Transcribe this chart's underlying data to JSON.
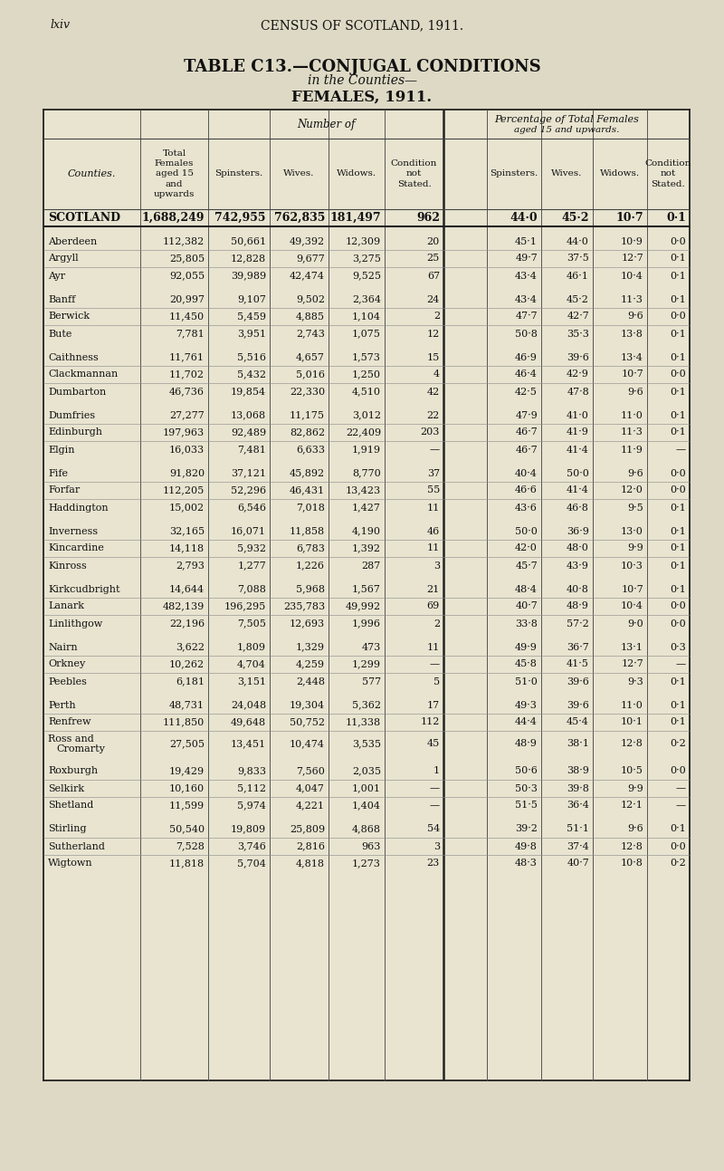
{
  "page_header_left": "lxiv",
  "page_header_center": "CENSUS OF SCOTLAND, 1911.",
  "title_line1": "TABLE C13.—CONJUGAL CONDITIONS",
  "title_line1_small": " in the Counties—",
  "title_line2": "FEMALES, 1911.",
  "rows": [
    [
      "SCOTLAND",
      "1,688,249",
      "742,955",
      "762,835",
      "181,497",
      "962",
      "44·0",
      "45·2",
      "10·7",
      "0·1",
      true
    ],
    [
      "Aberdeen",
      "112,382",
      "50,661",
      "49,392",
      "12,309",
      "20",
      "45·1",
      "44·0",
      "10·9",
      "0·0",
      false
    ],
    [
      "Argyll",
      "25,805",
      "12,828",
      "9,677",
      "3,275",
      "25",
      "49·7",
      "37·5",
      "12·7",
      "0·1",
      false
    ],
    [
      "Ayr",
      "92,055",
      "39,989",
      "42,474",
      "9,525",
      "67",
      "43·4",
      "46·1",
      "10·4",
      "0·1",
      false
    ],
    [
      "Banff",
      "20,997",
      "9,107",
      "9,502",
      "2,364",
      "24",
      "43·4",
      "45·2",
      "11·3",
      "0·1",
      false
    ],
    [
      "Berwick",
      "11,450",
      "5,459",
      "4,885",
      "1,104",
      "2",
      "47·7",
      "42·7",
      "9·6",
      "0·0",
      false
    ],
    [
      "Bute",
      "7,781",
      "3,951",
      "2,743",
      "1,075",
      "12",
      "50·8",
      "35·3",
      "13·8",
      "0·1",
      false
    ],
    [
      "Caithness",
      "11,761",
      "5,516",
      "4,657",
      "1,573",
      "15",
      "46·9",
      "39·6",
      "13·4",
      "0·1",
      false
    ],
    [
      "Clackmannan",
      "11,702",
      "5,432",
      "5,016",
      "1,250",
      "4",
      "46·4",
      "42·9",
      "10·7",
      "0·0",
      false
    ],
    [
      "Dumbarton",
      "46,736",
      "19,854",
      "22,330",
      "4,510",
      "42",
      "42·5",
      "47·8",
      "9·6",
      "0·1",
      false
    ],
    [
      "Dumfries",
      "27,277",
      "13,068",
      "11,175",
      "3,012",
      "22",
      "47·9",
      "41·0",
      "11·0",
      "0·1",
      false
    ],
    [
      "Edinburgh",
      "197,963",
      "92,489",
      "82,862",
      "22,409",
      "203",
      "46·7",
      "41·9",
      "11·3",
      "0·1",
      false
    ],
    [
      "Elgin",
      "16,033",
      "7,481",
      "6,633",
      "1,919",
      "—",
      "46·7",
      "41·4",
      "11·9",
      "—",
      false
    ],
    [
      "Fife",
      "91,820",
      "37,121",
      "45,892",
      "8,770",
      "37",
      "40·4",
      "50·0",
      "9·6",
      "0·0",
      false
    ],
    [
      "Forfar",
      "112,205",
      "52,296",
      "46,431",
      "13,423",
      "55",
      "46·6",
      "41·4",
      "12·0",
      "0·0",
      false
    ],
    [
      "Haddington",
      "15,002",
      "6,546",
      "7,018",
      "1,427",
      "11",
      "43·6",
      "46·8",
      "9·5",
      "0·1",
      false
    ],
    [
      "Inverness",
      "32,165",
      "16,071",
      "11,858",
      "4,190",
      "46",
      "50·0",
      "36·9",
      "13·0",
      "0·1",
      false
    ],
    [
      "Kincardine",
      "14,118",
      "5,932",
      "6,783",
      "1,392",
      "11",
      "42·0",
      "48·0",
      "9·9",
      "0·1",
      false
    ],
    [
      "Kinross",
      "2,793",
      "1,277",
      "1,226",
      "287",
      "3",
      "45·7",
      "43·9",
      "10·3",
      "0·1",
      false
    ],
    [
      "Kirkcudbright",
      "14,644",
      "7,088",
      "5,968",
      "1,567",
      "21",
      "48·4",
      "40·8",
      "10·7",
      "0·1",
      false
    ],
    [
      "Lanark",
      "482,139",
      "196,295",
      "235,783",
      "49,992",
      "69",
      "40·7",
      "48·9",
      "10·4",
      "0·0",
      false
    ],
    [
      "Linlithgow",
      "22,196",
      "7,505",
      "12,693",
      "1,996",
      "2",
      "33·8",
      "57·2",
      "9·0",
      "0·0",
      false
    ],
    [
      "Nairn",
      "3,622",
      "1,809",
      "1,329",
      "473",
      "11",
      "49·9",
      "36·7",
      "13·1",
      "0·3",
      false
    ],
    [
      "Orkney",
      "10,262",
      "4,704",
      "4,259",
      "1,299",
      "—",
      "45·8",
      "41·5",
      "12·7",
      "—",
      false
    ],
    [
      "Peebles",
      "6,181",
      "3,151",
      "2,448",
      "577",
      "5",
      "51·0",
      "39·6",
      "9·3",
      "0·1",
      false
    ],
    [
      "Perth",
      "48,731",
      "24,048",
      "19,304",
      "5,362",
      "17",
      "49·3",
      "39·6",
      "11·0",
      "0·1",
      false
    ],
    [
      "Renfrew",
      "111,850",
      "49,648",
      "50,752",
      "11,338",
      "112",
      "44·4",
      "45·4",
      "10·1",
      "0·1",
      false
    ],
    [
      "Ross and\nCromarty",
      "27,505",
      "13,451",
      "10,474",
      "3,535",
      "45",
      "48·9",
      "38·1",
      "12·8",
      "0·2",
      false
    ],
    [
      "Roxburgh",
      "19,429",
      "9,833",
      "7,560",
      "2,035",
      "1",
      "50·6",
      "38·9",
      "10·5",
      "0·0",
      false
    ],
    [
      "Selkirk",
      "10,160",
      "5,112",
      "4,047",
      "1,001",
      "—",
      "50·3",
      "39·8",
      "9·9",
      "—",
      false
    ],
    [
      "Shetland",
      "11,599",
      "5,974",
      "4,221",
      "1,404",
      "—",
      "51·5",
      "36·4",
      "12·1",
      "—",
      false
    ],
    [
      "Stirling",
      "50,540",
      "19,809",
      "25,809",
      "4,868",
      "54",
      "39·2",
      "51·1",
      "9·6",
      "0·1",
      false
    ],
    [
      "Sutherland",
      "7,528",
      "3,746",
      "2,816",
      "963",
      "3",
      "49·8",
      "37·4",
      "12·8",
      "0·0",
      false
    ],
    [
      "Wigtown",
      "11,818",
      "5,704",
      "4,818",
      "1,273",
      "23",
      "48·3",
      "40·7",
      "10·8",
      "0·2",
      false
    ]
  ],
  "bg_color": "#ddd9c4",
  "table_bg": "#e8e4d0",
  "border_color": "#222222",
  "text_color": "#111111"
}
